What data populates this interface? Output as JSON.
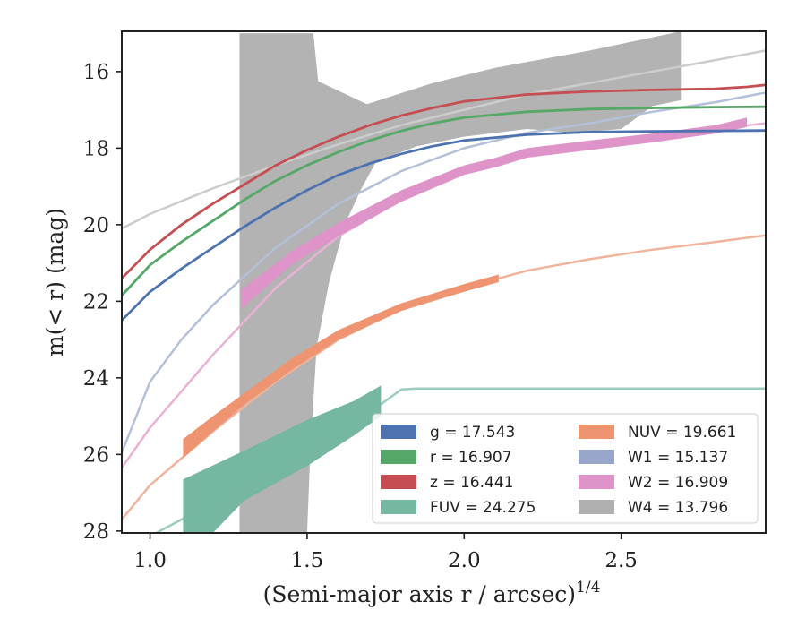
{
  "chart_data": {
    "type": "line",
    "xlabel": "(Semi-major axis r / arcsec)",
    "xlabel_superscript": "1/4",
    "ylabel": "m(< r) (mag)",
    "xlim": [
      0.91,
      2.96
    ],
    "ylim": [
      28.05,
      14.95
    ],
    "y_inverted": true,
    "grid": false,
    "legend_placement": "lower-right",
    "xticks": [
      {
        "value": 1.0,
        "label": "1.0"
      },
      {
        "value": 1.5,
        "label": "1.5"
      },
      {
        "value": 2.0,
        "label": "2.0"
      },
      {
        "value": 2.5,
        "label": "2.5"
      }
    ],
    "yticks": [
      {
        "value": 16,
        "label": "16"
      },
      {
        "value": 18,
        "label": "18"
      },
      {
        "value": 20,
        "label": "20"
      },
      {
        "value": 22,
        "label": "22"
      },
      {
        "value": 24,
        "label": "24"
      },
      {
        "value": 26,
        "label": "26"
      },
      {
        "value": 28,
        "label": "28"
      }
    ],
    "legend": [
      {
        "key": "g",
        "label": "g = 17.543",
        "color": "#4c72b0"
      },
      {
        "key": "r",
        "label": "r = 16.907",
        "color": "#55a868"
      },
      {
        "key": "z",
        "label": "z = 16.441",
        "color": "#c44e52"
      },
      {
        "key": "fuv",
        "label": "FUV = 24.275",
        "color": "#76b7a2"
      },
      {
        "key": "nuv",
        "label": "NUV = 19.661",
        "color": "#ee9470"
      },
      {
        "key": "w1",
        "label": "W1 = 15.137",
        "color": "#97a5c8"
      },
      {
        "key": "w2",
        "label": "W2 = 16.909",
        "color": "#de94c8"
      },
      {
        "key": "w4",
        "label": "W4 = 13.796",
        "color": "#b0b0b0"
      }
    ],
    "series": [
      {
        "key": "w4_band",
        "kind": "band",
        "color": "#b3b3b3",
        "polygon": [
          [
            1.285,
            15.0
          ],
          [
            1.52,
            15.0
          ],
          [
            1.535,
            16.25
          ],
          [
            1.69,
            16.85
          ],
          [
            1.9,
            16.3
          ],
          [
            2.1,
            15.9
          ],
          [
            2.4,
            15.45
          ],
          [
            2.69,
            14.95
          ],
          [
            2.69,
            16.75
          ],
          [
            2.6,
            16.9
          ],
          [
            2.5,
            17.5
          ],
          [
            2.35,
            17.6
          ],
          [
            2.2,
            17.5
          ],
          [
            2.0,
            17.7
          ],
          [
            1.85,
            17.95
          ],
          [
            1.72,
            18.35
          ],
          [
            1.67,
            19.1
          ],
          [
            1.62,
            20.0
          ],
          [
            1.57,
            21.5
          ],
          [
            1.53,
            23.2
          ],
          [
            1.51,
            26.0
          ],
          [
            1.5,
            28.05
          ],
          [
            1.285,
            28.05
          ]
        ]
      },
      {
        "key": "w4_line",
        "kind": "line",
        "color": "#cccccc",
        "width": 2.5,
        "points": [
          [
            0.91,
            20.1
          ],
          [
            1.0,
            19.72
          ],
          [
            1.2,
            19.05
          ],
          [
            1.4,
            18.45
          ],
          [
            1.6,
            17.9
          ],
          [
            1.8,
            17.4
          ],
          [
            2.0,
            17.0
          ],
          [
            2.2,
            16.6
          ],
          [
            2.4,
            16.3
          ],
          [
            2.6,
            16.0
          ],
          [
            2.8,
            15.7
          ],
          [
            2.96,
            15.45
          ]
        ]
      },
      {
        "key": "fuv_line",
        "kind": "line",
        "color": "#9ccdb8",
        "width": 2.5,
        "points": [
          [
            1.02,
            28.05
          ],
          [
            1.1,
            27.7
          ],
          [
            1.3,
            26.8
          ],
          [
            1.5,
            25.9
          ],
          [
            1.7,
            24.9
          ],
          [
            1.8,
            24.3
          ],
          [
            1.85,
            24.28
          ],
          [
            2.96,
            24.28
          ]
        ]
      },
      {
        "key": "fuv_band",
        "kind": "band",
        "color": "#76b7a2",
        "upper": [
          [
            1.105,
            26.65
          ],
          [
            1.3,
            25.9
          ],
          [
            1.5,
            25.1
          ],
          [
            1.65,
            24.6
          ],
          [
            1.735,
            24.2
          ]
        ],
        "lower": [
          [
            1.105,
            28.05
          ],
          [
            1.2,
            28.05
          ],
          [
            1.3,
            27.2
          ],
          [
            1.5,
            26.3
          ],
          [
            1.65,
            25.5
          ],
          [
            1.735,
            25.0
          ]
        ]
      },
      {
        "key": "nuv_line",
        "kind": "line",
        "color": "#f0b49c",
        "width": 2.5,
        "points": [
          [
            0.91,
            27.7
          ],
          [
            1.0,
            26.8
          ],
          [
            1.2,
            25.4
          ],
          [
            1.4,
            24.1
          ],
          [
            1.6,
            23.0
          ],
          [
            1.8,
            22.2
          ],
          [
            2.0,
            21.65
          ],
          [
            2.2,
            21.2
          ],
          [
            2.4,
            20.9
          ],
          [
            2.6,
            20.65
          ],
          [
            2.8,
            20.45
          ],
          [
            2.96,
            20.28
          ]
        ]
      },
      {
        "key": "nuv_band",
        "kind": "band",
        "color": "#ee9470",
        "upper": [
          [
            1.105,
            25.6
          ],
          [
            1.2,
            25.0
          ],
          [
            1.3,
            24.4
          ],
          [
            1.45,
            23.5
          ],
          [
            1.6,
            22.75
          ],
          [
            1.8,
            22.05
          ],
          [
            2.0,
            21.55
          ],
          [
            2.11,
            21.3
          ]
        ],
        "lower": [
          [
            1.105,
            26.1
          ],
          [
            1.2,
            25.4
          ],
          [
            1.3,
            24.7
          ],
          [
            1.45,
            23.8
          ],
          [
            1.6,
            23.0
          ],
          [
            1.8,
            22.25
          ],
          [
            2.0,
            21.75
          ],
          [
            2.11,
            21.5
          ]
        ]
      },
      {
        "key": "w2_line",
        "kind": "line",
        "color": "#eab1d6",
        "width": 2.5,
        "points": [
          [
            0.91,
            26.35
          ],
          [
            1.0,
            25.3
          ],
          [
            1.2,
            23.4
          ],
          [
            1.4,
            21.65
          ],
          [
            1.6,
            20.3
          ],
          [
            1.8,
            19.35
          ],
          [
            2.0,
            18.6
          ],
          [
            2.2,
            18.1
          ],
          [
            2.4,
            17.85
          ],
          [
            2.6,
            17.7
          ],
          [
            2.8,
            17.5
          ],
          [
            2.96,
            17.35
          ]
        ]
      },
      {
        "key": "w1_line",
        "kind": "line",
        "color": "#b4bfd9",
        "width": 2.5,
        "points": [
          [
            0.91,
            25.95
          ],
          [
            1.0,
            24.1
          ],
          [
            1.1,
            23.0
          ],
          [
            1.2,
            22.1
          ],
          [
            1.4,
            20.6
          ],
          [
            1.6,
            19.45
          ],
          [
            1.8,
            18.6
          ],
          [
            2.0,
            18.0
          ],
          [
            2.2,
            17.6
          ],
          [
            2.4,
            17.35
          ],
          [
            2.6,
            17.05
          ],
          [
            2.8,
            16.8
          ],
          [
            2.96,
            16.55
          ]
        ]
      },
      {
        "key": "w2_band",
        "kind": "band",
        "color": "#de94c8",
        "upper": [
          [
            1.29,
            21.7
          ],
          [
            1.45,
            20.7
          ],
          [
            1.6,
            19.95
          ],
          [
            1.8,
            19.1
          ],
          [
            2.0,
            18.45
          ],
          [
            2.1,
            18.25
          ],
          [
            2.2,
            18.0
          ],
          [
            2.4,
            17.8
          ],
          [
            2.6,
            17.62
          ],
          [
            2.8,
            17.4
          ],
          [
            2.9,
            17.2
          ]
        ],
        "lower": [
          [
            1.29,
            22.2
          ],
          [
            1.45,
            21.05
          ],
          [
            1.6,
            20.3
          ],
          [
            1.8,
            19.4
          ],
          [
            2.0,
            18.7
          ],
          [
            2.1,
            18.5
          ],
          [
            2.2,
            18.25
          ],
          [
            2.4,
            18.05
          ],
          [
            2.6,
            17.85
          ],
          [
            2.8,
            17.62
          ],
          [
            2.9,
            17.45
          ]
        ]
      },
      {
        "key": "g",
        "kind": "line",
        "color": "#4c72b0",
        "width": 2.8,
        "points": [
          [
            0.91,
            22.5
          ],
          [
            1.0,
            21.75
          ],
          [
            1.1,
            21.15
          ],
          [
            1.2,
            20.6
          ],
          [
            1.3,
            20.05
          ],
          [
            1.4,
            19.55
          ],
          [
            1.5,
            19.1
          ],
          [
            1.6,
            18.7
          ],
          [
            1.7,
            18.4
          ],
          [
            1.8,
            18.15
          ],
          [
            1.9,
            17.95
          ],
          [
            2.0,
            17.8
          ],
          [
            2.2,
            17.65
          ],
          [
            2.4,
            17.58
          ],
          [
            2.6,
            17.56
          ],
          [
            2.8,
            17.55
          ],
          [
            2.96,
            17.54
          ]
        ]
      },
      {
        "key": "r",
        "kind": "line",
        "color": "#55a868",
        "width": 2.8,
        "points": [
          [
            0.91,
            21.85
          ],
          [
            1.0,
            21.05
          ],
          [
            1.1,
            20.45
          ],
          [
            1.2,
            19.9
          ],
          [
            1.3,
            19.35
          ],
          [
            1.4,
            18.85
          ],
          [
            1.5,
            18.45
          ],
          [
            1.6,
            18.1
          ],
          [
            1.7,
            17.8
          ],
          [
            1.8,
            17.55
          ],
          [
            1.9,
            17.35
          ],
          [
            2.0,
            17.2
          ],
          [
            2.2,
            17.05
          ],
          [
            2.4,
            16.98
          ],
          [
            2.6,
            16.95
          ],
          [
            2.8,
            16.93
          ],
          [
            2.96,
            16.92
          ]
        ]
      },
      {
        "key": "z",
        "kind": "line",
        "color": "#c44e52",
        "width": 2.8,
        "points": [
          [
            0.91,
            21.4
          ],
          [
            1.0,
            20.65
          ],
          [
            1.1,
            20.0
          ],
          [
            1.2,
            19.45
          ],
          [
            1.3,
            18.95
          ],
          [
            1.4,
            18.45
          ],
          [
            1.5,
            18.05
          ],
          [
            1.6,
            17.7
          ],
          [
            1.7,
            17.4
          ],
          [
            1.8,
            17.15
          ],
          [
            1.9,
            16.95
          ],
          [
            2.0,
            16.78
          ],
          [
            2.2,
            16.6
          ],
          [
            2.4,
            16.52
          ],
          [
            2.6,
            16.48
          ],
          [
            2.8,
            16.45
          ],
          [
            2.9,
            16.4
          ],
          [
            2.96,
            16.35
          ]
        ]
      }
    ]
  }
}
